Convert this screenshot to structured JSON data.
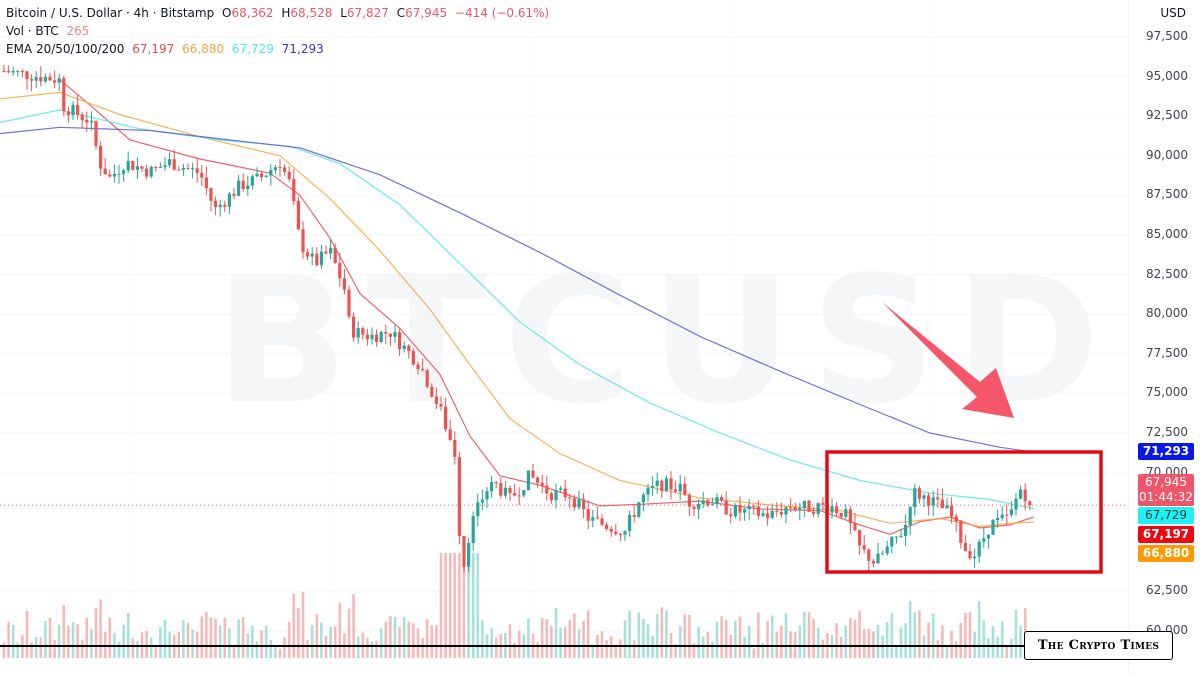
{
  "legend": {
    "symbol": "Bitcoin / U.S. Dollar · 4h · Bitstamp",
    "open_label": "O",
    "open": "68,362",
    "high_label": "H",
    "high": "68,528",
    "low_label": "L",
    "low": "67,827",
    "close_label": "C",
    "close": "67,945",
    "change": "−414 (−0.61%)",
    "vol_label": "Vol · BTC",
    "vol": "265",
    "ema_label": "EMA 20/50/100/200",
    "ema20": "67,197",
    "ema50": "66,880",
    "ema100": "67,729",
    "ema200": "71,293"
  },
  "watermark": "BTCUSD",
  "currency": "USD",
  "brand": "The Crypto Times",
  "colors": {
    "up": "#26a69a",
    "down": "#ef5350",
    "ema20": "#f0474f",
    "ema50": "#f7a440",
    "ema100": "#4de8ee",
    "ema200": "#5d5bd6",
    "box": "#e50914",
    "arrow": "#f5566a",
    "tag_close": "#f0566a",
    "tag_ema100": "#22f0f5",
    "tag_ema20": "#ea0a13",
    "tag_ema50": "#fb9a06",
    "tag_ema200": "#0a17e8"
  },
  "price_tags": {
    "close": "67,945",
    "countdown": "01:44:32",
    "ema100": "67,729",
    "ema20": "67,197",
    "ema50": "66,880",
    "ema200": "71,293"
  },
  "chart_data": {
    "type": "candlestick",
    "title": "Bitcoin / U.S. Dollar · 4h · Bitstamp",
    "xlabel": "",
    "ylabel": "USD",
    "y_ticks": [
      97500,
      95000,
      92500,
      90000,
      87500,
      85000,
      82500,
      80000,
      77500,
      75000,
      72500,
      70000,
      62500,
      60000
    ],
    "ylim": [
      58000,
      98500
    ],
    "last_bar": {
      "open": 68362,
      "high": 68528,
      "low": 67827,
      "close": 67945,
      "change": -414,
      "change_pct": -0.61,
      "volume_btc": 265
    },
    "ema": {
      "ema20": 67197,
      "ema50": 66880,
      "ema100": 67729,
      "ema200": 71293
    },
    "close_path": [
      [
        0,
        95400
      ],
      [
        30,
        95100
      ],
      [
        60,
        94800
      ],
      [
        62,
        93200
      ],
      [
        90,
        92200
      ],
      [
        100,
        89500
      ],
      [
        110,
        88600
      ],
      [
        125,
        89600
      ],
      [
        150,
        89000
      ],
      [
        170,
        89600
      ],
      [
        200,
        88900
      ],
      [
        215,
        86600
      ],
      [
        240,
        88100
      ],
      [
        260,
        88600
      ],
      [
        280,
        89600
      ],
      [
        290,
        88200
      ],
      [
        300,
        84500
      ],
      [
        315,
        83200
      ],
      [
        330,
        84000
      ],
      [
        345,
        81500
      ],
      [
        350,
        79000
      ],
      [
        370,
        78600
      ],
      [
        390,
        78900
      ],
      [
        410,
        77500
      ],
      [
        420,
        76800
      ],
      [
        440,
        74000
      ],
      [
        455,
        71200
      ],
      [
        462,
        63500
      ],
      [
        470,
        66500
      ],
      [
        485,
        68800
      ],
      [
        495,
        69300
      ],
      [
        510,
        68300
      ],
      [
        530,
        69800
      ],
      [
        550,
        68700
      ],
      [
        570,
        68600
      ],
      [
        590,
        67000
      ],
      [
        610,
        66600
      ],
      [
        625,
        66300
      ],
      [
        640,
        68300
      ],
      [
        660,
        69300
      ],
      [
        680,
        69000
      ],
      [
        690,
        68100
      ],
      [
        710,
        68300
      ],
      [
        730,
        67600
      ],
      [
        750,
        67500
      ],
      [
        770,
        67300
      ],
      [
        790,
        67900
      ],
      [
        810,
        67800
      ],
      [
        830,
        67900
      ],
      [
        845,
        67400
      ],
      [
        860,
        65200
      ],
      [
        875,
        64300
      ],
      [
        890,
        65400
      ],
      [
        905,
        66500
      ],
      [
        912,
        68800
      ],
      [
        930,
        68300
      ],
      [
        950,
        67400
      ],
      [
        965,
        65200
      ],
      [
        975,
        64800
      ],
      [
        990,
        66700
      ],
      [
        1010,
        67200
      ],
      [
        1020,
        69000
      ],
      [
        1030,
        68300
      ],
      [
        1034,
        67945
      ]
    ],
    "ema_paths": {
      "ema20": [
        [
          60,
          94800
        ],
        [
          90,
          93200
        ],
        [
          130,
          91000
        ],
        [
          200,
          89800
        ],
        [
          270,
          88900
        ],
        [
          300,
          87500
        ],
        [
          330,
          84800
        ],
        [
          360,
          81300
        ],
        [
          400,
          79100
        ],
        [
          440,
          76200
        ],
        [
          470,
          72300
        ],
        [
          500,
          69800
        ],
        [
          540,
          69200
        ],
        [
          600,
          67900
        ],
        [
          640,
          68000
        ],
        [
          700,
          68200
        ],
        [
          760,
          67700
        ],
        [
          820,
          67600
        ],
        [
          860,
          66700
        ],
        [
          890,
          66100
        ],
        [
          920,
          66900
        ],
        [
          950,
          67200
        ],
        [
          980,
          66500
        ],
        [
          1010,
          66700
        ],
        [
          1034,
          67197
        ]
      ],
      "ema50": [
        [
          0,
          93600
        ],
        [
          60,
          94000
        ],
        [
          120,
          92600
        ],
        [
          200,
          91200
        ],
        [
          280,
          90000
        ],
        [
          330,
          87300
        ],
        [
          380,
          84000
        ],
        [
          430,
          80300
        ],
        [
          470,
          76800
        ],
        [
          510,
          73400
        ],
        [
          560,
          71200
        ],
        [
          620,
          69500
        ],
        [
          700,
          68400
        ],
        [
          780,
          67900
        ],
        [
          840,
          67600
        ],
        [
          890,
          66800
        ],
        [
          940,
          67100
        ],
        [
          980,
          66600
        ],
        [
          1010,
          66800
        ],
        [
          1034,
          66880
        ]
      ],
      "ema100": [
        [
          0,
          92100
        ],
        [
          60,
          92900
        ],
        [
          140,
          91700
        ],
        [
          220,
          91000
        ],
        [
          290,
          90600
        ],
        [
          340,
          89500
        ],
        [
          400,
          86900
        ],
        [
          460,
          83200
        ],
        [
          520,
          79500
        ],
        [
          580,
          76800
        ],
        [
          650,
          74400
        ],
        [
          720,
          72500
        ],
        [
          790,
          70800
        ],
        [
          860,
          69500
        ],
        [
          930,
          68700
        ],
        [
          990,
          68300
        ],
        [
          1034,
          67729
        ]
      ],
      "ema200": [
        [
          0,
          91400
        ],
        [
          60,
          91800
        ],
        [
          150,
          91600
        ],
        [
          230,
          91000
        ],
        [
          300,
          90500
        ],
        [
          380,
          88800
        ],
        [
          460,
          86400
        ],
        [
          540,
          83900
        ],
        [
          620,
          81200
        ],
        [
          700,
          78600
        ],
        [
          780,
          76400
        ],
        [
          860,
          74300
        ],
        [
          930,
          72500
        ],
        [
          1000,
          71600
        ],
        [
          1034,
          71293
        ]
      ]
    }
  }
}
